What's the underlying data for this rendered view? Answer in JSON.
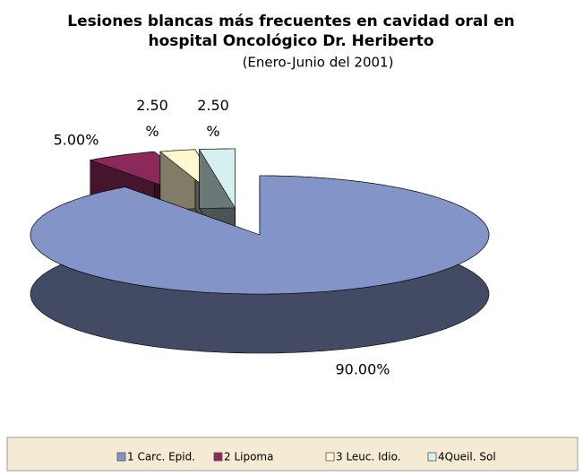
{
  "chart_data": {
    "type": "pie3d",
    "title": [
      "Lesiones blancas más frecuentes en cavidad oral en",
      "hospital Oncológico Dr. Heriberto"
    ],
    "subtitle": "(Enero-Junio del 2001)",
    "categories": [
      "1 Carc. Epid.",
      "2 Lipoma",
      "3 Leuc. Idio.",
      "4Queil. Sol"
    ],
    "values": [
      90,
      5,
      2.5,
      2.5
    ],
    "value_labels": [
      "90.00%",
      "5.00%",
      "2.50%",
      "2.50%"
    ],
    "colors": [
      "#8394c8",
      "#8b2a5a",
      "#fff8d0",
      "#d6f0f0"
    ],
    "legend": "bottom"
  }
}
